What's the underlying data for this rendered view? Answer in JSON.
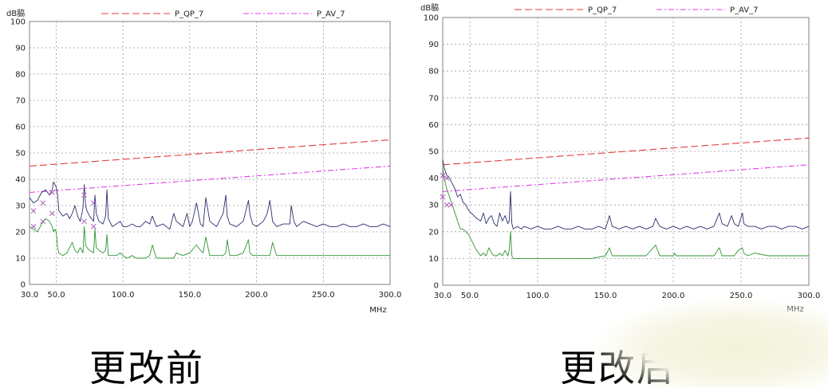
{
  "captions": [
    "更改前",
    "更改后"
  ],
  "chart_data": [
    {
      "type": "line",
      "ylabel": "dB脇",
      "xlabel": "MHz",
      "xlim": [
        30,
        300
      ],
      "ylim": [
        0,
        100
      ],
      "x_ticks": [
        "30.0",
        "50.0",
        "100.0",
        "150.0",
        "200.0",
        "250.0",
        "300.0"
      ],
      "y_ticks": [
        "0",
        "10",
        "20",
        "30",
        "40",
        "50",
        "60",
        "70",
        "80",
        "90",
        "100"
      ],
      "grid": true,
      "legend_position": "top",
      "series": [
        {
          "name": "P_QP_7",
          "color": "#e33b3b",
          "style": "dashed",
          "x": [
            30,
            300
          ],
          "values": [
            45,
            55
          ]
        },
        {
          "name": "P_AV_7",
          "color": "#e23ce6",
          "style": "dashdot",
          "x": [
            30,
            300
          ],
          "values": [
            35,
            45
          ]
        },
        {
          "color": "#2d2f6e",
          "x": [
            30,
            33,
            36,
            39,
            42,
            45,
            47,
            48,
            50,
            51,
            52,
            55,
            58,
            60,
            62,
            64,
            66,
            68,
            70,
            71,
            72,
            73,
            75,
            78,
            79,
            80,
            82,
            85,
            87,
            88,
            89,
            92,
            95,
            98,
            100,
            103,
            107,
            110,
            113,
            117,
            120,
            122,
            125,
            130,
            135,
            138,
            140,
            145,
            148,
            150,
            152,
            155,
            158,
            160,
            162,
            165,
            170,
            175,
            177,
            178,
            180,
            185,
            190,
            194,
            195,
            197,
            200,
            205,
            208,
            210,
            212,
            215,
            220,
            225,
            226,
            228,
            230,
            235,
            240,
            245,
            250,
            255,
            260,
            265,
            270,
            275,
            280,
            285,
            290,
            295,
            300
          ],
          "values": [
            33,
            31,
            32,
            35,
            36,
            34,
            36,
            39,
            37,
            34,
            28,
            26,
            27,
            25,
            27,
            30,
            26,
            24,
            29,
            38,
            30,
            28,
            26,
            24,
            34,
            27,
            24,
            23,
            26,
            36,
            25,
            22,
            23,
            24,
            22,
            22,
            23,
            22,
            22,
            24,
            23,
            26,
            22,
            23,
            21,
            27,
            24,
            22,
            27,
            22,
            24,
            31,
            23,
            22,
            33,
            24,
            22,
            27,
            34,
            26,
            23,
            22,
            24,
            32,
            27,
            23,
            22,
            24,
            27,
            32,
            24,
            22,
            23,
            23,
            30,
            24,
            22,
            24,
            23,
            22,
            23,
            22,
            22,
            23,
            22,
            22,
            23,
            22,
            22,
            23,
            22
          ]
        },
        {
          "color": "#2e9432",
          "x": [
            30,
            33,
            36,
            39,
            42,
            45,
            47,
            48,
            49,
            50,
            51,
            52,
            55,
            58,
            60,
            62,
            64,
            66,
            68,
            70,
            71,
            72,
            73,
            75,
            78,
            79,
            80,
            82,
            85,
            87,
            88,
            89,
            92,
            95,
            98,
            100,
            103,
            107,
            110,
            117,
            120,
            122,
            125,
            130,
            138,
            140,
            145,
            150,
            155,
            158,
            160,
            162,
            165,
            170,
            175,
            177,
            178,
            180,
            185,
            190,
            194,
            195,
            197,
            200,
            205,
            210,
            212,
            215,
            220,
            226,
            228,
            230,
            240,
            250,
            260,
            270,
            280,
            290,
            300
          ],
          "values": [
            22,
            21,
            20,
            23,
            25,
            24,
            22,
            20,
            21,
            20,
            14,
            12,
            11,
            12,
            14,
            16,
            13,
            12,
            14,
            12,
            22,
            15,
            14,
            13,
            12,
            21,
            14,
            13,
            12,
            13,
            19,
            11,
            11,
            11,
            12,
            11,
            10,
            11,
            10,
            10,
            11,
            15,
            10,
            10,
            10,
            12,
            11,
            12,
            15,
            13,
            12,
            18,
            11,
            11,
            11,
            12,
            17,
            11,
            11,
            12,
            17,
            12,
            11,
            11,
            11,
            11,
            16,
            11,
            11,
            11,
            11,
            11,
            11,
            11,
            11,
            11,
            11,
            11,
            11
          ]
        }
      ],
      "markers": [
        {
          "symbol": "x",
          "color": "#b05cc0",
          "x": [
            33,
            40,
            47,
            71,
            78
          ],
          "values": [
            28,
            31,
            35,
            34,
            31
          ]
        },
        {
          "symbol": "x",
          "color": "#b05cc0",
          "x": [
            33,
            40,
            47,
            71,
            78
          ],
          "values": [
            22,
            24,
            27,
            24,
            22
          ]
        }
      ]
    },
    {
      "type": "line",
      "ylabel": "dB脇",
      "xlabel": "MHz",
      "xlim": [
        30,
        300
      ],
      "ylim": [
        0,
        100
      ],
      "x_ticks": [
        "30.0",
        "50.0",
        "100.0",
        "150.0",
        "200.0",
        "250.0",
        "300.0"
      ],
      "y_ticks": [
        "0",
        "10",
        "20",
        "30",
        "40",
        "50",
        "60",
        "70",
        "80",
        "90",
        "100"
      ],
      "grid": true,
      "legend_position": "top",
      "series": [
        {
          "name": "P_QP_7",
          "color": "#e33b3b",
          "style": "dashed",
          "x": [
            30,
            300
          ],
          "values": [
            45,
            55
          ]
        },
        {
          "name": "P_AV_7",
          "color": "#e23ce6",
          "style": "dashdot",
          "x": [
            30,
            300
          ],
          "values": [
            35,
            45
          ]
        },
        {
          "color": "#2d2f6e",
          "x": [
            30,
            31,
            33,
            35,
            37,
            39,
            41,
            43,
            45,
            47,
            49,
            51,
            53,
            55,
            58,
            60,
            62,
            64,
            66,
            68,
            70,
            72,
            74,
            76,
            78,
            79,
            80,
            81,
            82,
            85,
            88,
            90,
            95,
            100,
            105,
            110,
            115,
            120,
            125,
            130,
            135,
            140,
            145,
            150,
            153,
            155,
            160,
            165,
            170,
            175,
            180,
            185,
            187,
            190,
            195,
            200,
            205,
            210,
            215,
            220,
            225,
            230,
            234,
            236,
            240,
            243,
            245,
            248,
            251,
            252,
            255,
            260,
            265,
            270,
            275,
            280,
            285,
            290,
            295,
            300
          ],
          "values": [
            47,
            44,
            41,
            40,
            38,
            36,
            33,
            34,
            31,
            30,
            28,
            27,
            26,
            25,
            24,
            27,
            23,
            25,
            26,
            23,
            22,
            27,
            24,
            26,
            23,
            24,
            35,
            23,
            21,
            22,
            21,
            22,
            21,
            22,
            21,
            21,
            22,
            21,
            21,
            22,
            21,
            21,
            22,
            21,
            26,
            22,
            21,
            22,
            21,
            22,
            21,
            22,
            25,
            22,
            21,
            22,
            21,
            22,
            21,
            22,
            21,
            22,
            27,
            23,
            22,
            26,
            23,
            22,
            27,
            23,
            22,
            22,
            21,
            22,
            22,
            21,
            22,
            22,
            21,
            22
          ]
        },
        {
          "color": "#2e9432",
          "x": [
            30,
            31,
            33,
            35,
            37,
            39,
            41,
            43,
            45,
            47,
            49,
            51,
            53,
            55,
            58,
            60,
            62,
            64,
            66,
            68,
            70,
            72,
            74,
            76,
            78,
            79,
            80,
            81,
            82,
            85,
            90,
            95,
            100,
            110,
            120,
            130,
            140,
            150,
            153,
            155,
            160,
            170,
            180,
            187,
            190,
            200,
            201,
            202,
            210,
            220,
            230,
            234,
            236,
            240,
            245,
            248,
            251,
            252,
            255,
            260,
            270,
            280,
            290,
            300
          ],
          "values": [
            44,
            40,
            36,
            33,
            30,
            27,
            24,
            21,
            21,
            20,
            19,
            17,
            15,
            13,
            11,
            12,
            11,
            14,
            12,
            11,
            11,
            12,
            11,
            13,
            11,
            13,
            20,
            11,
            10,
            10,
            10,
            10,
            10,
            10,
            10,
            10,
            10,
            11,
            14,
            11,
            11,
            11,
            11,
            15,
            11,
            11,
            12,
            11,
            11,
            11,
            11,
            14,
            11,
            11,
            11,
            13,
            14,
            12,
            11,
            12,
            11,
            11,
            11,
            11
          ]
        }
      ],
      "markers": [
        {
          "symbol": "x",
          "color": "#b05cc0",
          "x": [
            30,
            33,
            36
          ],
          "values": [
            41,
            40,
            30
          ]
        },
        {
          "symbol": "x",
          "color": "#b05cc0",
          "x": [
            30,
            33
          ],
          "values": [
            33,
            30
          ]
        }
      ]
    }
  ]
}
